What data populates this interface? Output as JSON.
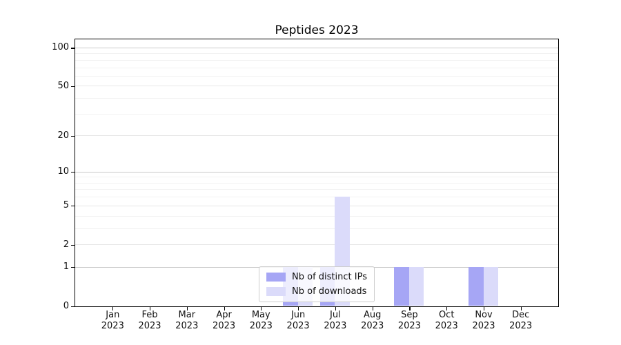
{
  "chart_data": {
    "type": "bar",
    "title": "Peptides 2023",
    "categories": [
      "Jan 2023",
      "Feb 2023",
      "Mar 2023",
      "Apr 2023",
      "May 2023",
      "Jun 2023",
      "Jul 2023",
      "Aug 2023",
      "Sep 2023",
      "Oct 2023",
      "Nov 2023",
      "Dec 2023"
    ],
    "series": [
      {
        "name": "Nb of distinct IPs",
        "color": "#a6a6f5",
        "values": [
          0,
          0,
          0,
          0,
          0,
          1,
          1,
          0,
          1,
          0,
          1,
          0
        ]
      },
      {
        "name": "Nb of downloads",
        "color": "#dbdbfa",
        "values": [
          0,
          0,
          0,
          0,
          0,
          1,
          6,
          0,
          1,
          0,
          1,
          0
        ]
      }
    ],
    "xlabel": "",
    "ylabel": "",
    "yscale": "log1p",
    "ylim": [
      0,
      116
    ],
    "yticks": [
      0,
      1,
      2,
      5,
      10,
      20,
      50,
      100
    ],
    "ytick_levels": {
      "major": [
        1,
        10,
        100
      ],
      "mid": [
        2,
        5,
        20,
        50
      ],
      "minor": [
        3,
        4,
        6,
        7,
        8,
        9,
        30,
        40,
        60,
        70,
        80,
        90
      ]
    },
    "grid": true,
    "legend": {
      "position": "lower center"
    },
    "style": {
      "grid_major": "#c9c9c9",
      "grid_mid": "#e6e6e6",
      "grid_minor": "#f2f2f2",
      "spine": "#000000",
      "text": "#111111",
      "legend_bg": "rgba(255,255,255,0.8)",
      "legend_border": "#cccccc",
      "background": "#ffffff"
    }
  }
}
